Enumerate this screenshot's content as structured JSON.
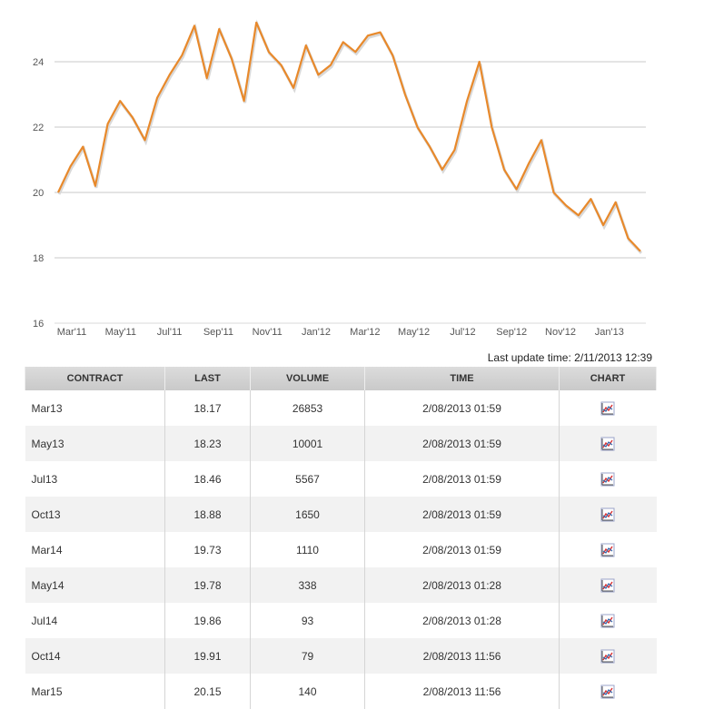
{
  "colors": {
    "line": "#e8892b",
    "grid": "#c8c8c8",
    "header_bg": "#d0d0d0",
    "row_alt": "#f2f2f2"
  },
  "chart_data": {
    "type": "line",
    "title": "",
    "xlabel": "",
    "ylabel": "",
    "ylim": [
      16,
      26
    ],
    "yticks": [
      16,
      18,
      20,
      22,
      24
    ],
    "grid": true,
    "x_ticks": [
      "Mar'11",
      "May'11",
      "Jul'11",
      "Sep'11",
      "Nov'11",
      "Jan'12",
      "Mar'12",
      "May'12",
      "Jul'12",
      "Sep'12",
      "Nov'12",
      "Jan'13"
    ],
    "x": [
      "Feb'11",
      "Mar'11",
      "Mar'11",
      "Apr'11",
      "Apr'11",
      "May'11",
      "May'11",
      "Jun'11",
      "Jun'11",
      "Jul'11",
      "Jul'11",
      "Aug'11",
      "Aug'11",
      "Sep'11",
      "Sep'11",
      "Oct'11",
      "Oct'11",
      "Nov'11",
      "Nov'11",
      "Dec'11",
      "Dec'11",
      "Jan'12",
      "Jan'12",
      "Feb'12",
      "Feb'12",
      "Mar'12",
      "Mar'12",
      "Apr'12",
      "Apr'12",
      "May'12",
      "May'12",
      "Jun'12",
      "Jun'12",
      "Jul'12",
      "Jul'12",
      "Aug'12",
      "Aug'12",
      "Sep'12",
      "Sep'12",
      "Oct'12",
      "Oct'12",
      "Nov'12",
      "Nov'12",
      "Dec'12",
      "Dec'12",
      "Jan'13",
      "Jan'13",
      "Feb'13"
    ],
    "series": [
      {
        "values": [
          20.0,
          20.8,
          21.4,
          20.2,
          22.1,
          22.8,
          22.3,
          21.6,
          22.9,
          23.6,
          24.2,
          25.1,
          23.5,
          25.0,
          24.1,
          22.8,
          25.2,
          24.3,
          23.9,
          23.2,
          24.5,
          23.6,
          23.9,
          24.6,
          24.3,
          24.8,
          24.9,
          24.2,
          23.0,
          22.0,
          21.4,
          20.7,
          21.3,
          22.8,
          24.0,
          22.0,
          20.7,
          20.1,
          20.9,
          21.6,
          20.0,
          19.6,
          19.3,
          19.8,
          19.0,
          19.7,
          18.6,
          18.2
        ]
      }
    ]
  },
  "update": {
    "label": "Last update time:",
    "value": "2/11/2013 12:39"
  },
  "table": {
    "headers": [
      "CONTRACT",
      "LAST",
      "VOLUME",
      "TIME",
      "CHART"
    ],
    "rows": [
      {
        "contract": "Mar13",
        "last": "18.17",
        "volume": "26853",
        "time": "2/08/2013 01:59"
      },
      {
        "contract": "May13",
        "last": "18.23",
        "volume": "10001",
        "time": "2/08/2013 01:59"
      },
      {
        "contract": "Jul13",
        "last": "18.46",
        "volume": "5567",
        "time": "2/08/2013 01:59"
      },
      {
        "contract": "Oct13",
        "last": "18.88",
        "volume": "1650",
        "time": "2/08/2013 01:59"
      },
      {
        "contract": "Mar14",
        "last": "19.73",
        "volume": "1110",
        "time": "2/08/2013 01:59"
      },
      {
        "contract": "May14",
        "last": "19.78",
        "volume": "338",
        "time": "2/08/2013 01:28"
      },
      {
        "contract": "Jul14",
        "last": "19.86",
        "volume": "93",
        "time": "2/08/2013 01:28"
      },
      {
        "contract": "Oct14",
        "last": "19.91",
        "volume": "79",
        "time": "2/08/2013 11:56"
      },
      {
        "contract": "Mar15",
        "last": "20.15",
        "volume": "140",
        "time": "2/08/2013 11:56"
      }
    ],
    "row_icon": "line-chart-icon"
  }
}
